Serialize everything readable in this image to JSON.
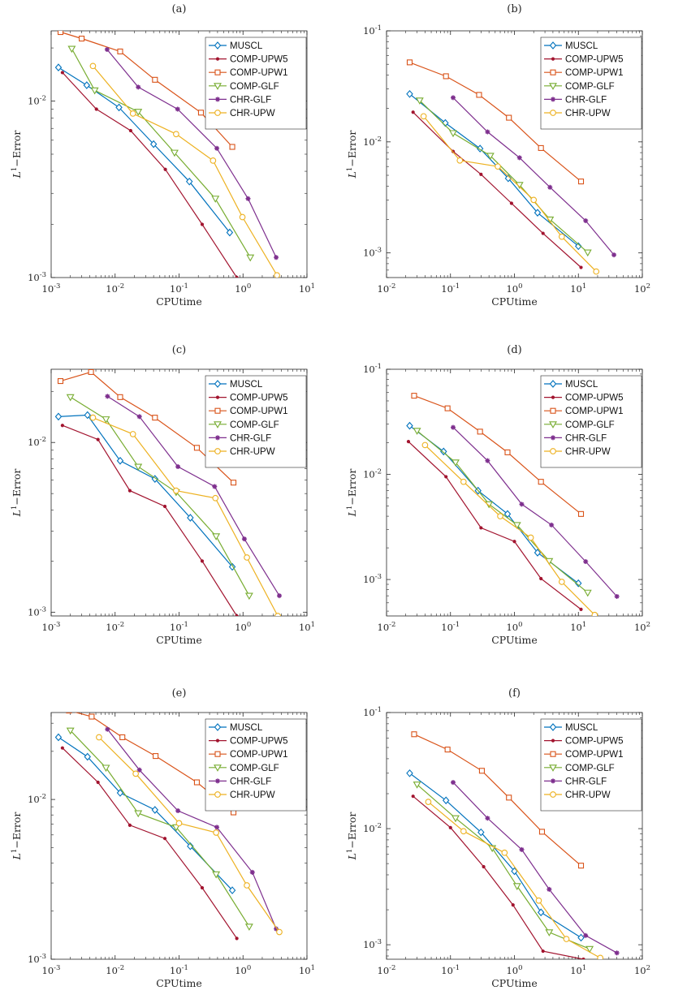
{
  "figure": {
    "panels": [
      {
        "tag": "(a)",
        "xlabel": "CPUtime",
        "ylabel_base": "L",
        "ylabel_sup": "1",
        "ylabel_rest": "−Error",
        "xtick_labels": [
          "10",
          "10",
          "10",
          "10",
          "10"
        ],
        "xtick_exps": [
          "-3",
          "-2",
          "-1",
          "0",
          "1"
        ],
        "ytick_labels": [
          "10",
          "10"
        ],
        "ytick_exps": [
          "-3",
          "-2"
        ]
      },
      {
        "tag": "(b)",
        "xlabel": "CPUtime",
        "ylabel_base": "L",
        "ylabel_sup": "1",
        "ylabel_rest": "−Error",
        "xtick_labels": [
          "10",
          "10",
          "10",
          "10",
          "10"
        ],
        "xtick_exps": [
          "-2",
          "-1",
          "0",
          "1",
          "2"
        ],
        "ytick_labels": [
          "10",
          "10",
          "10"
        ],
        "ytick_exps": [
          "-3",
          "-2",
          "-1"
        ]
      },
      {
        "tag": "(c)",
        "xlabel": "CPUtime",
        "ylabel_base": "L",
        "ylabel_sup": "1",
        "ylabel_rest": "−Error",
        "xtick_labels": [
          "10",
          "10",
          "10",
          "10",
          "10"
        ],
        "xtick_exps": [
          "-3",
          "-2",
          "-1",
          "0",
          "1"
        ],
        "ytick_labels": [
          "10",
          "10"
        ],
        "ytick_exps": [
          "-3",
          "-2"
        ]
      },
      {
        "tag": "(d)",
        "xlabel": "CPUtime",
        "ylabel_base": "L",
        "ylabel_sup": "1",
        "ylabel_rest": "−Error",
        "xtick_labels": [
          "10",
          "10",
          "10",
          "10",
          "10"
        ],
        "xtick_exps": [
          "-2",
          "-1",
          "0",
          "1",
          "2"
        ],
        "ytick_labels": [
          "10",
          "10",
          "10"
        ],
        "ytick_exps": [
          "-3",
          "-2",
          "-1"
        ]
      },
      {
        "tag": "(e)",
        "xlabel": "CPUtime",
        "ylabel_base": "L",
        "ylabel_sup": "1",
        "ylabel_rest": "−Error",
        "xtick_labels": [
          "10",
          "10",
          "10",
          "10",
          "10"
        ],
        "xtick_exps": [
          "-3",
          "-2",
          "-1",
          "0",
          "1"
        ],
        "ytick_labels": [
          "10",
          "10"
        ],
        "ytick_exps": [
          "-3",
          "-2"
        ]
      },
      {
        "tag": "(f)",
        "xlabel": "CPUtime",
        "ylabel_base": "L",
        "ylabel_sup": "1",
        "ylabel_rest": "−Error",
        "xtick_labels": [
          "10",
          "10",
          "10",
          "10",
          "10"
        ],
        "xtick_exps": [
          "-2",
          "-1",
          "0",
          "1",
          "2"
        ],
        "ytick_labels": [
          "10",
          "10",
          "10"
        ],
        "ytick_exps": [
          "-3",
          "-2",
          "-1"
        ]
      }
    ]
  },
  "series_styles": [
    {
      "name": "MUSCL",
      "color": "#0072BD",
      "marker": "diamond"
    },
    {
      "name": "COMP-UPW5",
      "color": "#A2142F",
      "marker": "dot"
    },
    {
      "name": "COMP-UPW1",
      "color": "#D95319",
      "marker": "square"
    },
    {
      "name": "COMP-GLF",
      "color": "#77AC30",
      "marker": "triangle-down"
    },
    {
      "name": "CHR-GLF",
      "color": "#7E2F8E",
      "marker": "star"
    },
    {
      "name": "CHR-UPW",
      "color": "#EDB120",
      "marker": "circle"
    }
  ],
  "chart_data": [
    {
      "type": "line",
      "title": "(a)",
      "xlabel": "CPUtime",
      "ylabel": "L^1-Error",
      "xscale": "log",
      "yscale": "log",
      "xlim": [
        0.001,
        10
      ],
      "ylim": [
        0.001,
        0.025
      ],
      "legend_position": "top-right",
      "series": [
        {
          "name": "MUSCL",
          "x": [
            0.0013,
            0.0036,
            0.0115,
            0.04,
            0.145,
            0.62
          ],
          "y": [
            0.0155,
            0.0123,
            0.0092,
            0.0057,
            0.0035,
            0.0018
          ]
        },
        {
          "name": "COMP-UPW5",
          "x": [
            0.0015,
            0.0051,
            0.0175,
            0.061,
            0.23,
            0.8
          ],
          "y": [
            0.0145,
            0.009,
            0.0068,
            0.0041,
            0.002,
            0.001
          ]
        },
        {
          "name": "COMP-UPW1",
          "x": [
            0.0014,
            0.003,
            0.012,
            0.042,
            0.22,
            0.68
          ],
          "y": [
            0.0246,
            0.0226,
            0.0191,
            0.0132,
            0.0086,
            0.0055
          ]
        },
        {
          "name": "COMP-GLF",
          "x": [
            0.0021,
            0.0048,
            0.023,
            0.085,
            0.37,
            1.3
          ],
          "y": [
            0.0198,
            0.0115,
            0.0087,
            0.0051,
            0.0028,
            0.0013
          ]
        },
        {
          "name": "CHR-GLF",
          "x": [
            0.0075,
            0.023,
            0.095,
            0.39,
            1.2,
            3.3
          ],
          "y": [
            0.0196,
            0.012,
            0.009,
            0.0054,
            0.0028,
            0.0013
          ]
        },
        {
          "name": "CHR-UPW",
          "x": [
            0.0045,
            0.019,
            0.09,
            0.34,
            0.98,
            3.4
          ],
          "y": [
            0.0158,
            0.0085,
            0.0065,
            0.0046,
            0.0022,
            0.00103
          ]
        }
      ]
    },
    {
      "type": "line",
      "title": "(b)",
      "xlabel": "CPUtime",
      "ylabel": "L^1-Error",
      "xscale": "log",
      "yscale": "log",
      "xlim": [
        0.01,
        100
      ],
      "ylim": [
        0.0006,
        0.1
      ],
      "legend_position": "top-right",
      "series": [
        {
          "name": "MUSCL",
          "x": [
            0.023,
            0.083,
            0.29,
            0.8,
            2.3,
            10
          ],
          "y": [
            0.027,
            0.0148,
            0.0087,
            0.0047,
            0.0023,
            0.00115
          ]
        },
        {
          "name": "COMP-UPW5",
          "x": [
            0.026,
            0.11,
            0.3,
            0.9,
            2.8,
            11
          ],
          "y": [
            0.0185,
            0.0082,
            0.0051,
            0.0028,
            0.0015,
            0.00074
          ]
        },
        {
          "name": "COMP-UPW1",
          "x": [
            0.023,
            0.085,
            0.28,
            0.82,
            2.6,
            11
          ],
          "y": [
            0.052,
            0.039,
            0.0265,
            0.0165,
            0.0088,
            0.0044
          ]
        },
        {
          "name": "COMP-GLF",
          "x": [
            0.033,
            0.11,
            0.42,
            1.2,
            3.6,
            14
          ],
          "y": [
            0.0236,
            0.012,
            0.0075,
            0.0041,
            0.002,
            0.00101
          ]
        },
        {
          "name": "CHR-GLF",
          "x": [
            0.11,
            0.38,
            1.2,
            3.6,
            13,
            36
          ],
          "y": [
            0.025,
            0.0123,
            0.0072,
            0.0039,
            0.00195,
            0.00096
          ]
        },
        {
          "name": "CHR-UPW",
          "x": [
            0.038,
            0.14,
            0.55,
            2.0,
            5.5,
            19
          ],
          "y": [
            0.017,
            0.0068,
            0.006,
            0.003,
            0.0014,
            0.00068
          ]
        }
      ]
    },
    {
      "type": "line",
      "title": "(c)",
      "xlabel": "CPUtime",
      "ylabel": "L^1-Error",
      "xscale": "log",
      "yscale": "log",
      "xlim": [
        0.001,
        10
      ],
      "ylim": [
        0.00095,
        0.027
      ],
      "legend_position": "top-right",
      "series": [
        {
          "name": "MUSCL",
          "x": [
            0.0013,
            0.0037,
            0.012,
            0.042,
            0.15,
            0.68
          ],
          "y": [
            0.0142,
            0.0145,
            0.0078,
            0.0061,
            0.0036,
            0.00185
          ]
        },
        {
          "name": "COMP-UPW5",
          "x": [
            0.0015,
            0.0054,
            0.017,
            0.06,
            0.23,
            0.8
          ],
          "y": [
            0.0126,
            0.0104,
            0.0052,
            0.0042,
            0.002,
            0.00095
          ]
        },
        {
          "name": "COMP-UPW1",
          "x": [
            0.0014,
            0.0042,
            0.012,
            0.042,
            0.19,
            0.71
          ],
          "y": [
            0.023,
            0.026,
            0.0185,
            0.014,
            0.0093,
            0.0058
          ]
        },
        {
          "name": "COMP-GLF",
          "x": [
            0.002,
            0.0072,
            0.023,
            0.09,
            0.38,
            1.25
          ],
          "y": [
            0.0185,
            0.0137,
            0.0072,
            0.0051,
            0.0028,
            0.00125
          ]
        },
        {
          "name": "CHR-GLF",
          "x": [
            0.0076,
            0.024,
            0.096,
            0.36,
            1.05,
            3.7
          ],
          "y": [
            0.0187,
            0.0142,
            0.0072,
            0.0055,
            0.0027,
            0.00125
          ]
        },
        {
          "name": "CHR-UPW",
          "x": [
            0.0045,
            0.019,
            0.09,
            0.37,
            1.15,
            3.5
          ],
          "y": [
            0.014,
            0.0112,
            0.0052,
            0.0047,
            0.0021,
            0.00095
          ]
        }
      ]
    },
    {
      "type": "line",
      "title": "(d)",
      "xlabel": "CPUtime",
      "ylabel": "L^1-Error",
      "xscale": "log",
      "yscale": "log",
      "xlim": [
        0.01,
        100
      ],
      "ylim": [
        0.00045,
        0.1
      ],
      "legend_position": "top-right",
      "series": [
        {
          "name": "MUSCL",
          "x": [
            0.023,
            0.078,
            0.27,
            0.78,
            2.3,
            10
          ],
          "y": [
            0.029,
            0.0165,
            0.007,
            0.0042,
            0.0018,
            0.00092
          ]
        },
        {
          "name": "COMP-UPW5",
          "x": [
            0.022,
            0.085,
            0.3,
            1.0,
            2.6,
            11
          ],
          "y": [
            0.0205,
            0.0095,
            0.0031,
            0.0023,
            0.00102,
            0.00052
          ]
        },
        {
          "name": "COMP-UPW1",
          "x": [
            0.027,
            0.09,
            0.29,
            0.78,
            2.6,
            11
          ],
          "y": [
            0.056,
            0.0425,
            0.0255,
            0.0162,
            0.0085,
            0.0042
          ]
        },
        {
          "name": "COMP-GLF",
          "x": [
            0.03,
            0.12,
            0.4,
            1.1,
            3.5,
            14
          ],
          "y": [
            0.026,
            0.013,
            0.0052,
            0.0033,
            0.0015,
            0.00075
          ]
        },
        {
          "name": "CHR-GLF",
          "x": [
            0.11,
            0.38,
            1.3,
            3.8,
            13,
            40
          ],
          "y": [
            0.028,
            0.0135,
            0.0052,
            0.0033,
            0.00148,
            0.00069
          ]
        },
        {
          "name": "CHR-UPW",
          "x": [
            0.04,
            0.16,
            0.6,
            1.8,
            5.5,
            18
          ],
          "y": [
            0.019,
            0.0085,
            0.004,
            0.0025,
            0.00095,
            0.00046
          ]
        }
      ]
    },
    {
      "type": "line",
      "title": "(e)",
      "xlabel": "CPUtime",
      "ylabel": "L^1-Error",
      "xscale": "log",
      "yscale": "log",
      "xlim": [
        0.001,
        10
      ],
      "ylim": [
        0.001,
        0.035
      ],
      "legend_position": "top-right",
      "series": [
        {
          "name": "MUSCL",
          "x": [
            0.0013,
            0.0037,
            0.012,
            0.042,
            0.15,
            0.68
          ],
          "y": [
            0.0245,
            0.0185,
            0.011,
            0.0086,
            0.0051,
            0.0027
          ]
        },
        {
          "name": "COMP-UPW5",
          "x": [
            0.0015,
            0.0054,
            0.017,
            0.06,
            0.23,
            0.8
          ],
          "y": [
            0.021,
            0.0128,
            0.0069,
            0.0057,
            0.0028,
            0.00135
          ]
        },
        {
          "name": "COMP-UPW1",
          "x": [
            0.0019,
            0.0043,
            0.013,
            0.043,
            0.19,
            0.71
          ],
          "y": [
            0.036,
            0.033,
            0.0245,
            0.0187,
            0.0128,
            0.0083
          ]
        },
        {
          "name": "COMP-GLF",
          "x": [
            0.002,
            0.0072,
            0.023,
            0.09,
            0.38,
            1.25
          ],
          "y": [
            0.027,
            0.0158,
            0.0082,
            0.0067,
            0.0034,
            0.0016
          ]
        },
        {
          "name": "CHR-GLF",
          "x": [
            0.0076,
            0.024,
            0.096,
            0.39,
            1.4,
            3.3
          ],
          "y": [
            0.0275,
            0.0153,
            0.0085,
            0.0067,
            0.0035,
            0.00155
          ]
        },
        {
          "name": "CHR-UPW",
          "x": [
            0.0056,
            0.021,
            0.1,
            0.38,
            1.15,
            3.7
          ],
          "y": [
            0.0245,
            0.0145,
            0.0071,
            0.0062,
            0.0029,
            0.00148
          ]
        }
      ]
    },
    {
      "type": "line",
      "title": "(f)",
      "xlabel": "CPUtime",
      "ylabel": "L^1-Error",
      "xscale": "log",
      "yscale": "log",
      "xlim": [
        0.01,
        100
      ],
      "ylim": [
        0.00075,
        0.1
      ],
      "legend_position": "top-right",
      "series": [
        {
          "name": "MUSCL",
          "x": [
            0.023,
            0.085,
            0.3,
            1.0,
            2.6,
            11
          ],
          "y": [
            0.03,
            0.0175,
            0.0093,
            0.0043,
            0.0019,
            0.00115
          ]
        },
        {
          "name": "COMP-UPW5",
          "x": [
            0.026,
            0.1,
            0.33,
            0.95,
            2.8,
            12
          ],
          "y": [
            0.019,
            0.0102,
            0.0047,
            0.0022,
            0.00088,
            0.00075
          ]
        },
        {
          "name": "COMP-UPW1",
          "x": [
            0.027,
            0.09,
            0.31,
            0.82,
            2.7,
            11
          ],
          "y": [
            0.065,
            0.048,
            0.0315,
            0.0185,
            0.0094,
            0.0048
          ]
        },
        {
          "name": "COMP-GLF",
          "x": [
            0.03,
            0.12,
            0.45,
            1.1,
            3.5,
            15
          ],
          "y": [
            0.024,
            0.0123,
            0.0068,
            0.0032,
            0.00128,
            0.00092
          ]
        },
        {
          "name": "CHR-GLF",
          "x": [
            0.11,
            0.38,
            1.3,
            3.5,
            13,
            40
          ],
          "y": [
            0.025,
            0.0123,
            0.0066,
            0.003,
            0.0012,
            0.00085
          ]
        },
        {
          "name": "CHR-UPW",
          "x": [
            0.045,
            0.16,
            0.7,
            2.4,
            6.5,
            22
          ],
          "y": [
            0.017,
            0.0095,
            0.0062,
            0.0024,
            0.00112,
            0.00077
          ]
        }
      ]
    }
  ]
}
